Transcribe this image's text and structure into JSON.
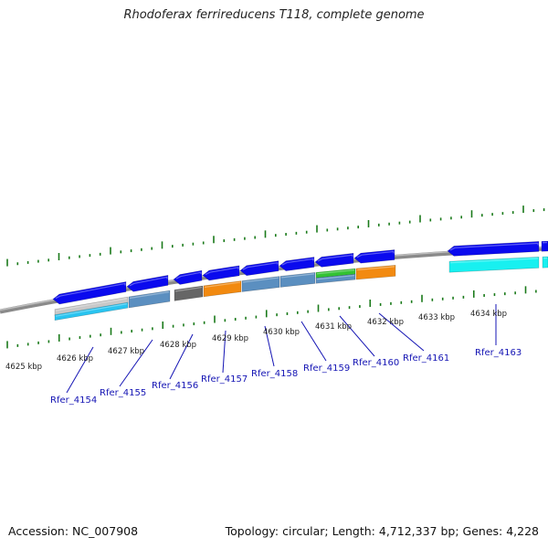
{
  "title": "Rhodoferax ferrireducens T118, complete genome",
  "footer": {
    "accession": "Accession: NC_007908",
    "stats": "Topology: circular; Length: 4,712,337 bp; Genes: 4,228"
  },
  "scale_labels": [
    "4625 kbp",
    "4626 kbp",
    "4627 kbp",
    "4628 kbp",
    "4629 kbp",
    "4630 kbp",
    "4631 kbp",
    "4632 kbp",
    "4633 kbp",
    "4634 kbp"
  ],
  "gene_labels": [
    "Rfer_4154",
    "Rfer_4155",
    "Rfer_4156",
    "Rfer_4157",
    "Rfer_4158",
    "Rfer_4159",
    "Rfer_4160",
    "Rfer_4161",
    "Rfer_4163"
  ],
  "colors": {
    "cds": "#0a0aee",
    "tick": "#1a7a1a",
    "backbone": "#8a8a8a",
    "label": "#1414b4",
    "cog_light_blue": "#29c4f0",
    "cog_steel": "#5b8fc0",
    "cog_dark_grey": "#666666",
    "cog_orange": "#f28a10",
    "cog_green": "#33c233",
    "cog_cyan": "#18f0f0",
    "cog_light_grey": "#c8c8c8"
  }
}
